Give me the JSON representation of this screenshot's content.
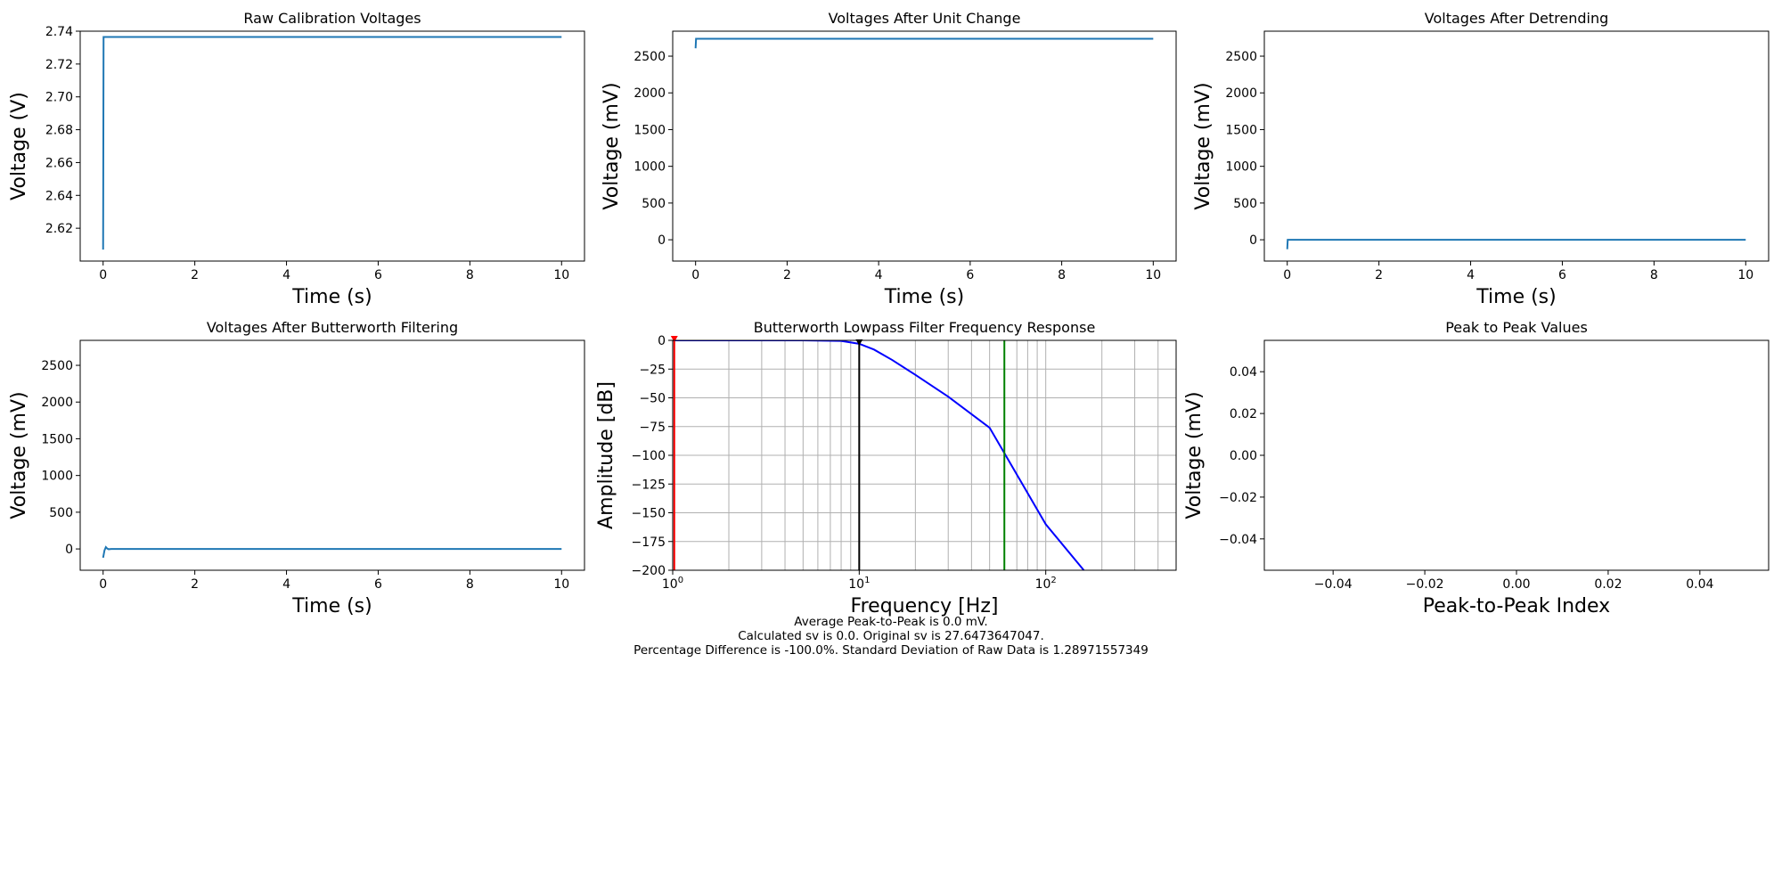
{
  "figure": {
    "summary_lines": [
      "Average Peak-to-Peak is 0.0 mV.",
      "Calculated sv is 0.0. Original sv is 27.6473647047.",
      "Percentage Difference is -100.0%. Standard Deviation of Raw Data is 1.28971557349"
    ]
  },
  "colors": {
    "series": "#1f77b4",
    "response": "#0000ff",
    "cutoff_line": "#000000",
    "noise_line": "#008000",
    "low_line": "#ff0000",
    "grid": "#b0b0b0"
  },
  "chart_data": [
    {
      "type": "line",
      "title": "Raw Calibration Voltages",
      "xlabel": "Time (s)",
      "ylabel": "Voltage (V)",
      "xlim": [
        -0.5,
        10.5
      ],
      "ylim": [
        2.6,
        2.74
      ],
      "xticks": [
        0,
        2,
        4,
        6,
        8,
        10
      ],
      "xtick_labels": [
        "0",
        "2",
        "4",
        "6",
        "8",
        "10"
      ],
      "yticks": [
        2.62,
        2.64,
        2.66,
        2.68,
        2.7,
        2.72,
        2.74
      ],
      "ytick_labels": [
        "2.62",
        "2.64",
        "2.66",
        "2.68",
        "2.70",
        "2.72",
        "2.74"
      ],
      "series": [
        {
          "x": [
            0,
            0.01,
            10
          ],
          "y": [
            2.607,
            2.7365,
            2.7365
          ]
        }
      ]
    },
    {
      "type": "line",
      "title": "Voltages After Unit Change",
      "xlabel": "Time (s)",
      "ylabel": "Voltage (mV)",
      "xlim": [
        -0.5,
        10.5
      ],
      "ylim": [
        -290,
        2840
      ],
      "xticks": [
        0,
        2,
        4,
        6,
        8,
        10
      ],
      "xtick_labels": [
        "0",
        "2",
        "4",
        "6",
        "8",
        "10"
      ],
      "yticks": [
        0,
        500,
        1000,
        1500,
        2000,
        2500
      ],
      "ytick_labels": [
        "0",
        "500",
        "1000",
        "1500",
        "2000",
        "2500"
      ],
      "series": [
        {
          "x": [
            0,
            0.01,
            10
          ],
          "y": [
            2607,
            2736.5,
            2736.5
          ]
        }
      ]
    },
    {
      "type": "line",
      "title": "Voltages After Detrending",
      "xlabel": "Time (s)",
      "ylabel": "Voltage (mV)",
      "xlim": [
        -0.5,
        10.5
      ],
      "ylim": [
        -290,
        2840
      ],
      "xticks": [
        0,
        2,
        4,
        6,
        8,
        10
      ],
      "xtick_labels": [
        "0",
        "2",
        "4",
        "6",
        "8",
        "10"
      ],
      "yticks": [
        0,
        500,
        1000,
        1500,
        2000,
        2500
      ],
      "ytick_labels": [
        "0",
        "500",
        "1000",
        "1500",
        "2000",
        "2500"
      ],
      "series": [
        {
          "x": [
            0,
            0.01,
            10
          ],
          "y": [
            -129,
            0,
            0
          ]
        }
      ]
    },
    {
      "type": "line",
      "title": "Voltages After Butterworth Filtering",
      "xlabel": "Time (s)",
      "ylabel": "Voltage (mV)",
      "xlim": [
        -0.5,
        10.5
      ],
      "ylim": [
        -290,
        2840
      ],
      "xticks": [
        0,
        2,
        4,
        6,
        8,
        10
      ],
      "xtick_labels": [
        "0",
        "2",
        "4",
        "6",
        "8",
        "10"
      ],
      "yticks": [
        0,
        500,
        1000,
        1500,
        2000,
        2500
      ],
      "ytick_labels": [
        "0",
        "500",
        "1000",
        "1500",
        "2000",
        "2500"
      ],
      "series": [
        {
          "x": [
            0,
            0.03,
            0.06,
            0.09,
            0.12,
            0.18,
            10
          ],
          "y": [
            -120,
            -20,
            25,
            5,
            -4,
            0,
            0
          ]
        }
      ]
    },
    {
      "type": "line",
      "title": "Butterworth Lowpass Filter Frequency Response",
      "xlabel": "Frequency [Hz]",
      "ylabel": "Amplitude [dB]",
      "xscale": "log",
      "xlim": [
        1,
        500
      ],
      "ylim": [
        -200,
        0
      ],
      "grid": true,
      "xticks": [
        1,
        10,
        100
      ],
      "xtick_labels": [
        "10",
        "10",
        "10"
      ],
      "xtick_exponents": [
        "0",
        "1",
        "2"
      ],
      "yticks": [
        0,
        -25,
        -50,
        -75,
        -100,
        -125,
        -150,
        -175,
        -200
      ],
      "ytick_labels": [
        "0",
        "−25",
        "−50",
        "−75",
        "−100",
        "−125",
        "−150",
        "−175",
        "−200"
      ],
      "series": [
        {
          "x": [
            1,
            5,
            8,
            10,
            12,
            15,
            20,
            30,
            50,
            100,
            160
          ],
          "y": [
            0,
            0,
            -0.5,
            -3,
            -8,
            -17,
            -30,
            -49,
            -76,
            -160,
            -200
          ]
        }
      ],
      "vlines": [
        {
          "x": 10,
          "color": "#000000"
        },
        {
          "x": 60,
          "color": "#008000"
        },
        {
          "x": 1.02,
          "color": "#ff0000"
        }
      ],
      "markers": [
        {
          "x": 10,
          "y": -3,
          "color": "#000000"
        },
        {
          "x": 1.02,
          "y": 0,
          "color": "#ff0000"
        }
      ]
    },
    {
      "type": "scatter",
      "title": "Peak to Peak Values",
      "xlabel": "Peak-to-Peak Index",
      "ylabel": "Voltage (mV)",
      "xlim": [
        -0.055,
        0.055
      ],
      "ylim": [
        -0.055,
        0.055
      ],
      "xticks": [
        -0.04,
        -0.02,
        0.0,
        0.02,
        0.04
      ],
      "xtick_labels": [
        "−0.04",
        "−0.02",
        "0.00",
        "0.02",
        "0.04"
      ],
      "yticks": [
        0.04,
        0.02,
        0.0,
        -0.02,
        -0.04
      ],
      "ytick_labels": [
        "0.04",
        "0.02",
        "0.00",
        "−0.02",
        "−0.04"
      ],
      "series": []
    }
  ]
}
